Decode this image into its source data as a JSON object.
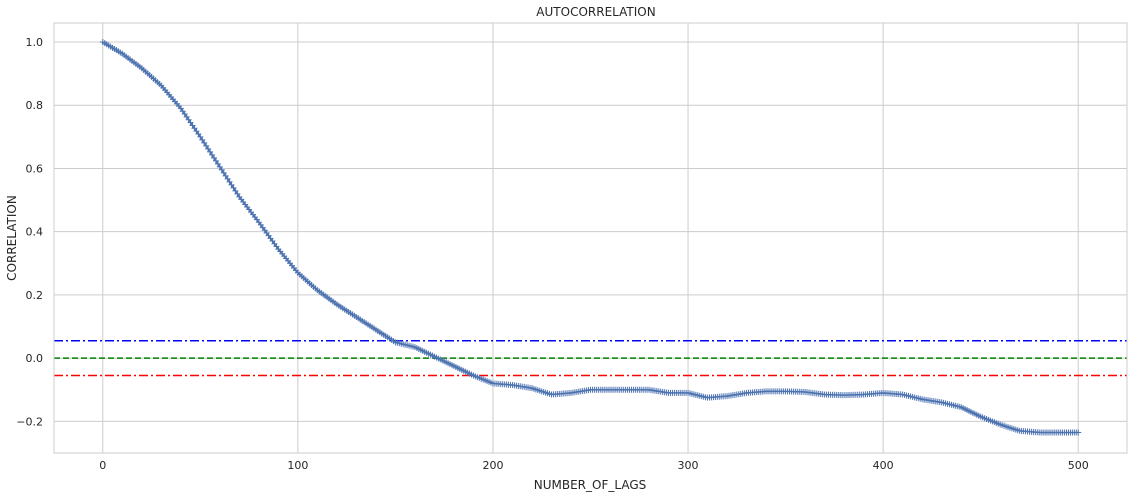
{
  "chart_data": {
    "type": "line",
    "title": "AUTOCORRELATION",
    "xlabel": "NUMBER_OF_LAGS",
    "ylabel": "CORRELATION",
    "xlim": [
      -25,
      525
    ],
    "ylim": [
      -0.3,
      1.06
    ],
    "x_ticks": [
      0,
      100,
      200,
      300,
      400,
      500
    ],
    "x_tick_labels": [
      "0",
      "100",
      "200",
      "300",
      "400",
      "500"
    ],
    "y_ticks": [
      -0.2,
      0.0,
      0.2,
      0.4,
      0.6,
      0.8,
      1.0
    ],
    "y_tick_labels": [
      "−0.2",
      "0.0",
      "0.2",
      "0.4",
      "0.6",
      "0.8",
      "1.0"
    ],
    "grid": true,
    "series": [
      {
        "color": "#4c72b0",
        "marker": "+",
        "x_start": 0,
        "x_end": 500,
        "knots": [
          [
            0,
            1.0
          ],
          [
            10,
            0.963
          ],
          [
            20,
            0.917
          ],
          [
            30,
            0.862
          ],
          [
            40,
            0.79
          ],
          [
            50,
            0.7
          ],
          [
            60,
            0.605
          ],
          [
            70,
            0.51
          ],
          [
            80,
            0.43
          ],
          [
            90,
            0.345
          ],
          [
            100,
            0.27
          ],
          [
            110,
            0.215
          ],
          [
            120,
            0.17
          ],
          [
            130,
            0.13
          ],
          [
            140,
            0.09
          ],
          [
            150,
            0.05
          ],
          [
            160,
            0.035
          ],
          [
            170,
            0.005
          ],
          [
            180,
            -0.025
          ],
          [
            190,
            -0.055
          ],
          [
            200,
            -0.08
          ],
          [
            210,
            -0.085
          ],
          [
            220,
            -0.095
          ],
          [
            230,
            -0.115
          ],
          [
            240,
            -0.11
          ],
          [
            250,
            -0.1
          ],
          [
            260,
            -0.1
          ],
          [
            270,
            -0.1
          ],
          [
            280,
            -0.1
          ],
          [
            290,
            -0.11
          ],
          [
            300,
            -0.11
          ],
          [
            310,
            -0.125
          ],
          [
            320,
            -0.12
          ],
          [
            330,
            -0.11
          ],
          [
            340,
            -0.105
          ],
          [
            350,
            -0.105
          ],
          [
            360,
            -0.107
          ],
          [
            370,
            -0.115
          ],
          [
            380,
            -0.117
          ],
          [
            390,
            -0.115
          ],
          [
            400,
            -0.11
          ],
          [
            410,
            -0.115
          ],
          [
            420,
            -0.13
          ],
          [
            430,
            -0.14
          ],
          [
            440,
            -0.155
          ],
          [
            450,
            -0.185
          ],
          [
            460,
            -0.21
          ],
          [
            470,
            -0.23
          ],
          [
            480,
            -0.235
          ],
          [
            490,
            -0.235
          ],
          [
            500,
            -0.235
          ]
        ]
      }
    ],
    "reference_lines": [
      {
        "y": 0.055,
        "color": "#0000ff",
        "style": "dashdot"
      },
      {
        "y": 0.0,
        "color": "#008000",
        "style": "dashed"
      },
      {
        "y": -0.055,
        "color": "#ff0000",
        "style": "dashdot"
      }
    ]
  },
  "colors": {
    "grid": "#cccccc",
    "axes_edge": "#cccccc",
    "text": "#262626"
  }
}
